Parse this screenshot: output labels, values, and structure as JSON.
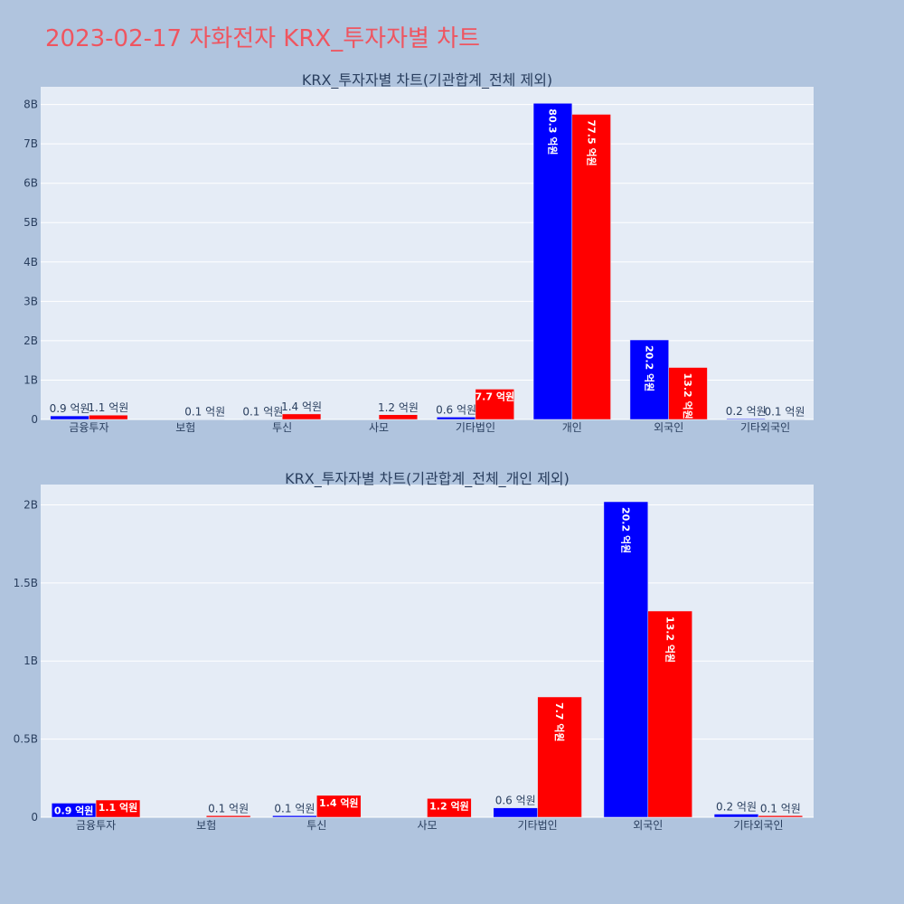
{
  "page": {
    "title": "2023-02-17 자화전자 KRX_투자자별 차트",
    "title_color": "#ef5560",
    "background": "#b0c4de",
    "plot_background": "#e5ecf6"
  },
  "chart_data": [
    {
      "type": "bar",
      "title": "KRX_투자자별 차트(기관합계_전체 제외)",
      "categories": [
        "금융투자",
        "보험",
        "투신",
        "사모",
        "기타법인",
        "개인",
        "외국인",
        "기타외국인"
      ],
      "series": [
        {
          "color": "#0000ff",
          "values": [
            90000000,
            0,
            10000000,
            0,
            60000000,
            8030000000,
            2020000000,
            20000000
          ],
          "labels": [
            "0.9 억원",
            "",
            "0.1 억원",
            "",
            "0.6 억원",
            "80.3 억원",
            "20.2 억원",
            "0.2 억원"
          ]
        },
        {
          "color": "#ff0000",
          "values": [
            110000000,
            10000000,
            140000000,
            120000000,
            770000000,
            7750000000,
            1320000000,
            10000000
          ],
          "labels": [
            "1.1 억원",
            "0.1 억원",
            "1.4 억원",
            "1.2 억원",
            "7.7 억원",
            "77.5 억원",
            "13.2 억원",
            "0.1 억원"
          ]
        }
      ],
      "yticks": [
        {
          "value": 0,
          "label": "0"
        },
        {
          "value": 1000000000,
          "label": "1B"
        },
        {
          "value": 2000000000,
          "label": "2B"
        },
        {
          "value": 3000000000,
          "label": "3B"
        },
        {
          "value": 4000000000,
          "label": "4B"
        },
        {
          "value": 5000000000,
          "label": "5B"
        },
        {
          "value": 6000000000,
          "label": "6B"
        },
        {
          "value": 7000000000,
          "label": "7B"
        },
        {
          "value": 8000000000,
          "label": "8B"
        }
      ],
      "ylim": [
        0,
        8450000000
      ],
      "grid": true
    },
    {
      "type": "bar",
      "title": "KRX_투자자별 차트(기관합계_전체_개인 제외)",
      "categories": [
        "금융투자",
        "보험",
        "투신",
        "사모",
        "기타법인",
        "외국인",
        "기타외국인"
      ],
      "series": [
        {
          "color": "#0000ff",
          "values": [
            90000000,
            0,
            10000000,
            0,
            60000000,
            2020000000,
            20000000
          ],
          "labels": [
            "0.9 억원",
            "",
            "0.1 억원",
            "",
            "0.6 억원",
            "20.2 억원",
            "0.2 억원"
          ]
        },
        {
          "color": "#ff0000",
          "values": [
            110000000,
            10000000,
            140000000,
            120000000,
            770000000,
            1320000000,
            10000000
          ],
          "labels": [
            "1.1 억원",
            "0.1 억원",
            "1.4 억원",
            "1.2 억원",
            "7.7 억원",
            "13.2 억원",
            "0.1 억원"
          ]
        }
      ],
      "yticks": [
        {
          "value": 0,
          "label": "0"
        },
        {
          "value": 500000000,
          "label": "0.5B"
        },
        {
          "value": 1000000000,
          "label": "1B"
        },
        {
          "value": 1500000000,
          "label": "1.5B"
        },
        {
          "value": 2000000000,
          "label": "2B"
        }
      ],
      "ylim": [
        0,
        2130000000
      ],
      "grid": true
    }
  ]
}
